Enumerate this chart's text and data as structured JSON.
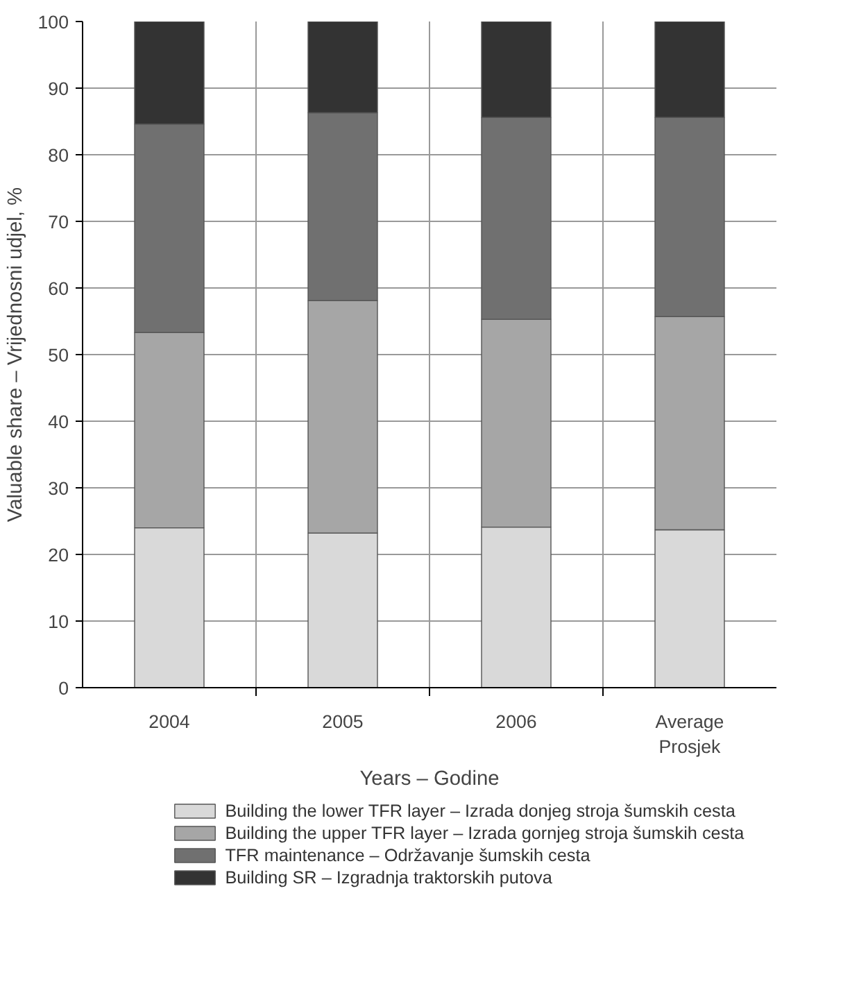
{
  "chart_data": {
    "type": "bar",
    "stacked": true,
    "xlabel": "Years – Godine",
    "ylabel": "Valuable share – Vrijednosni udjel, %",
    "categories": [
      "2004",
      "2005",
      "2006",
      "Average\nProsjek"
    ],
    "series": [
      {
        "name": "Building the lower TFR layer – Izrada donjeg stroja šumskih cesta",
        "color": "#d9d9d9",
        "values": [
          24.0,
          23.2,
          24.1,
          23.7
        ]
      },
      {
        "name": "Building the upper TFR layer – Izrada gornjeg stroja šumskih cesta",
        "color": "#a6a6a6",
        "values": [
          29.3,
          34.9,
          31.2,
          32.0
        ]
      },
      {
        "name": "TFR maintenance – Održavanje šumskih cesta",
        "color": "#707070",
        "values": [
          31.3,
          28.2,
          30.3,
          29.9
        ]
      },
      {
        "name": "Building SR – Izgradnja traktorskih putova",
        "color": "#333333",
        "values": [
          15.4,
          13.7,
          14.4,
          14.4
        ]
      }
    ],
    "ylim": [
      0,
      100
    ],
    "yticks": [
      0,
      10,
      20,
      30,
      40,
      50,
      60,
      70,
      80,
      90,
      100
    ],
    "grid": true,
    "legend": "bottom"
  }
}
